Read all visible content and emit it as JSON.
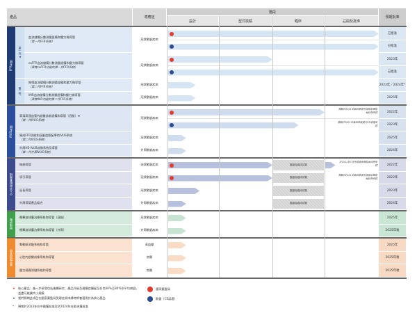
{
  "header": {
    "product": "產品",
    "indication": "適應症",
    "stage": "階段",
    "stages": [
      "設計",
      "型式檢驗",
      "臨床",
      "註冊及批准"
    ],
    "expected": "預期批准"
  },
  "colors": {
    "ffr": "#1f3b73",
    "ivus": "#2b4f9c",
    "guide": "#3d4a8c",
    "green": "#3f9f4d",
    "orange": "#ee8a2f",
    "red_dot": "#e23b2e",
    "blue_dot": "#2c4a8f"
  },
  "groups": [
    {
      "label": "FFR系統",
      "color": "#1f3b73",
      "row_bg": "#dfeaf6",
      "bar": "#d5e5f4",
      "exp_bg": "#dbe7f3",
      "subgroups": [
        {
          "label": "第一代★",
          "rows": [
            0,
            1
          ]
        },
        {
          "label": "第二代",
          "rows": [
            2,
            3
          ]
        }
      ],
      "rows": [
        {
          "name": "血流儲備分數測量設備和壓力微導管",
          "sub": "（第一代FFR系統）",
          "indication": "冠狀動脈疾病",
          "tracks": [
            {
              "marker": "nmpa",
              "stage": 4.0
            },
            {
              "marker": "ce",
              "stage": 4.0
            }
          ],
          "expected": [
            "已批准",
            "已批准"
          ]
        },
        {
          "name": "caFFR血流儲備分數測量設備和壓力微導管",
          "sub": "（具有caFFR功能的第一代FFR系統）",
          "indication": "冠狀動脈疾病",
          "tracks": [
            {
              "marker": "nmpa",
              "stage": 2.0
            },
            {
              "marker": "ce",
              "stage": 4.0
            }
          ],
          "expected": [
            "2023年",
            "已批准"
          ]
        },
        {
          "name": "無線血流儲備分數測量設備和壓力微導管",
          "sub": "（第二代FFR系統）",
          "indication": "冠狀動脈疾病",
          "tracks": [
            {
              "stage": 0.55
            }
          ],
          "expected": [
            "2023年／2024年*"
          ]
        },
        {
          "name": "IMR血流儲備分數測量設備和壓力微導管",
          "sub": "（具有IMR功能的第二代FFR系統）",
          "indication": "冠狀動脈疾病",
          "tracks": [
            {
              "stage": 0.55
            }
          ],
          "expected": [
            "2025年"
          ]
        }
      ]
    },
    {
      "label": "IVUS系統",
      "color": "#2b4f9c",
      "row_bg": "#dde6f2",
      "bar": "#cfdcee",
      "exp_bg": "#d8e2ef",
      "rows": [
        {
          "name": "高清高速血管內超聲診斷設備和導管（冠脈）★",
          "sub": "（第一代IVUS系統）",
          "indication": "冠狀動脈疾病",
          "tracks": [
            {
              "marker": "nmpa",
              "stage": 3.0,
              "note": "預期於2021年第四季度完成國家藥監局註冊申請"
            },
            {
              "marker": "ce",
              "stage": 2.5,
              "note": "預期於2021年第四季度提交CE認證申請"
            }
          ],
          "expected": [
            "2022年",
            "2023年"
          ]
        },
        {
          "name": "集成FFR功能和冠脈造影配準的IVUS系統",
          "sub": "（第二代IVUS系統）",
          "indication": "冠狀動脈疾病",
          "tracks": [
            {
              "stage": 0.37
            }
          ],
          "expected": [
            "2025年"
          ]
        },
        {
          "name": "外周HS-IVUS成像系統及導管",
          "sub": "（第一代外周IVUS系統）",
          "indication": "外周動脈疾病",
          "tracks": [
            {
              "stage": 0.37
            }
          ],
          "expected": [
            "2024年"
          ]
        }
      ]
    },
    {
      "label": "介入手術配套器械",
      "color": "#3d4a8c",
      "row_bg": "#dfe2ee",
      "bar": "#b7c1de",
      "exp_bg": "#d6dae9",
      "rows": [
        {
          "name": "微創導管",
          "indication": "冠狀動脈疾病",
          "tracks": [
            {
              "marker": "nmpa",
              "stage": 2.0,
              "exempt": true,
              "after": 3.2,
              "note": "於2021年7月完成國家藥監局註冊申請"
            }
          ],
          "expected": [
            "2022年"
          ]
        },
        {
          "name": "導引導管",
          "indication": "冠狀動脈疾病",
          "tracks": [
            {
              "marker": "nmpa",
              "stage": 2.0,
              "exempt": true,
              "note": "預期於2021年第四季度完成國家藥監局註冊申請"
            }
          ],
          "expected": [
            "2022年"
          ]
        },
        {
          "name": "延長導管",
          "indication": "冠狀動脈疾病",
          "tracks": [
            {
              "stage": 0.63,
              "exempt": true
            }
          ],
          "expected": [
            "2023年"
          ]
        },
        {
          "name": "外周導管產品組合",
          "indication": "外周動脈疾病",
          "tracks": [
            {
              "stage": 0.37,
              "exempt": true
            }
          ],
          "expected": [
            "2024年"
          ]
        }
      ]
    },
    {
      "label": "斑塊消融",
      "color": "#3f9f4d",
      "row_bg": "#d3eadc",
      "bar": "#c6e4d1",
      "exp_bg": "#c9e6d4",
      "rows": [
        {
          "name": "衝擊波球囊治療系統和導管（冠脈）",
          "indication": "冠狀動脈疾病",
          "tracks": [
            {
              "stage": 0.37
            }
          ],
          "expected": [
            "2025年"
          ]
        },
        {
          "name": "衝擊波球囊治療系統和導管（外周）",
          "indication": "外周動脈疾病",
          "tracks": [
            {
              "stage": 0.37
            }
          ],
          "expected": [
            "2025年後"
          ]
        }
      ]
    },
    {
      "label": "電生理與其他",
      "color": "#ee8a2f",
      "row_bg": "#fbe2d0",
      "bar": "#f9dcc6",
      "exp_bg": "#f8dac4",
      "rows": [
        {
          "name": "腎動脈消融系統和導管",
          "indication": "高血壓",
          "tracks": [
            {
              "stage": 0.37
            }
          ],
          "expected": [
            "2025年"
          ]
        },
        {
          "name": "心腔內超聲成像系統和導管",
          "indication": "房顫",
          "tracks": [
            {
              "stage": 0.37
            }
          ],
          "expected": [
            "2025年後"
          ]
        },
        {
          "name": "壓力感應消融系統和導管",
          "indication": "房顫",
          "tracks": [
            {
              "stage": 0.37
            }
          ],
          "expected": [
            "2025年後"
          ]
        }
      ]
    }
  ],
  "exempt_label": "獲豁免臨床試驗",
  "legend": {
    "core_note": "核心產品：進一步研發包括後續研究、產品升級及適應症擴展至任何30%至80%非平均病變，並盡可能擴大小規模",
    "star_note": "我們預期此項目在國家藥監局受理註冊申請時將會適用於為核心產品",
    "asterisk_note": "預期於2023年在中國獲批准及於2024年在歐洲獲批准",
    "nmpa": "國家藥監局",
    "ce": "歐盟（CE認證）"
  }
}
